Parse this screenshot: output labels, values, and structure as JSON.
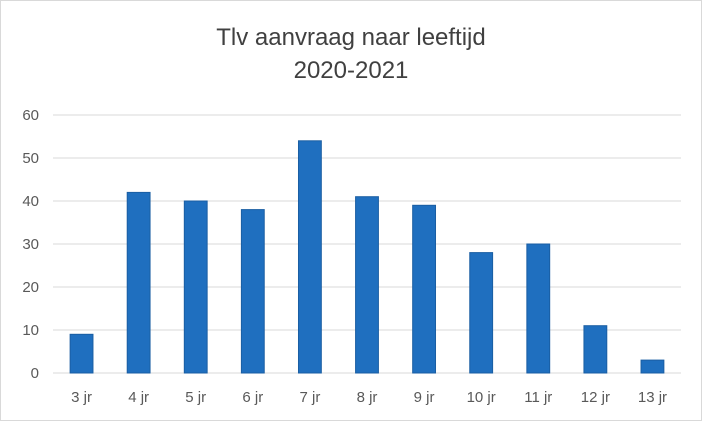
{
  "chart_data": {
    "type": "bar",
    "title": "Tlv aanvraag naar leeftijd",
    "subtitle": "2020-2021",
    "categories": [
      "3 jr",
      "4 jr",
      "5 jr",
      "6 jr",
      "7 jr",
      "8 jr",
      "9 jr",
      "10 jr",
      "11 jr",
      "12 jr",
      "13 jr"
    ],
    "values": [
      9,
      42,
      40,
      38,
      54,
      41,
      39,
      28,
      30,
      11,
      3
    ],
    "ylim": [
      0,
      60
    ],
    "yticks": [
      0,
      10,
      20,
      30,
      40,
      50,
      60
    ],
    "xlabel": "",
    "ylabel": "",
    "grid": true,
    "bar_color": "#1f6fbf",
    "bar_border_color": "#1a5ea3",
    "gridline_color": "#d9d9d9",
    "legend": "none"
  }
}
